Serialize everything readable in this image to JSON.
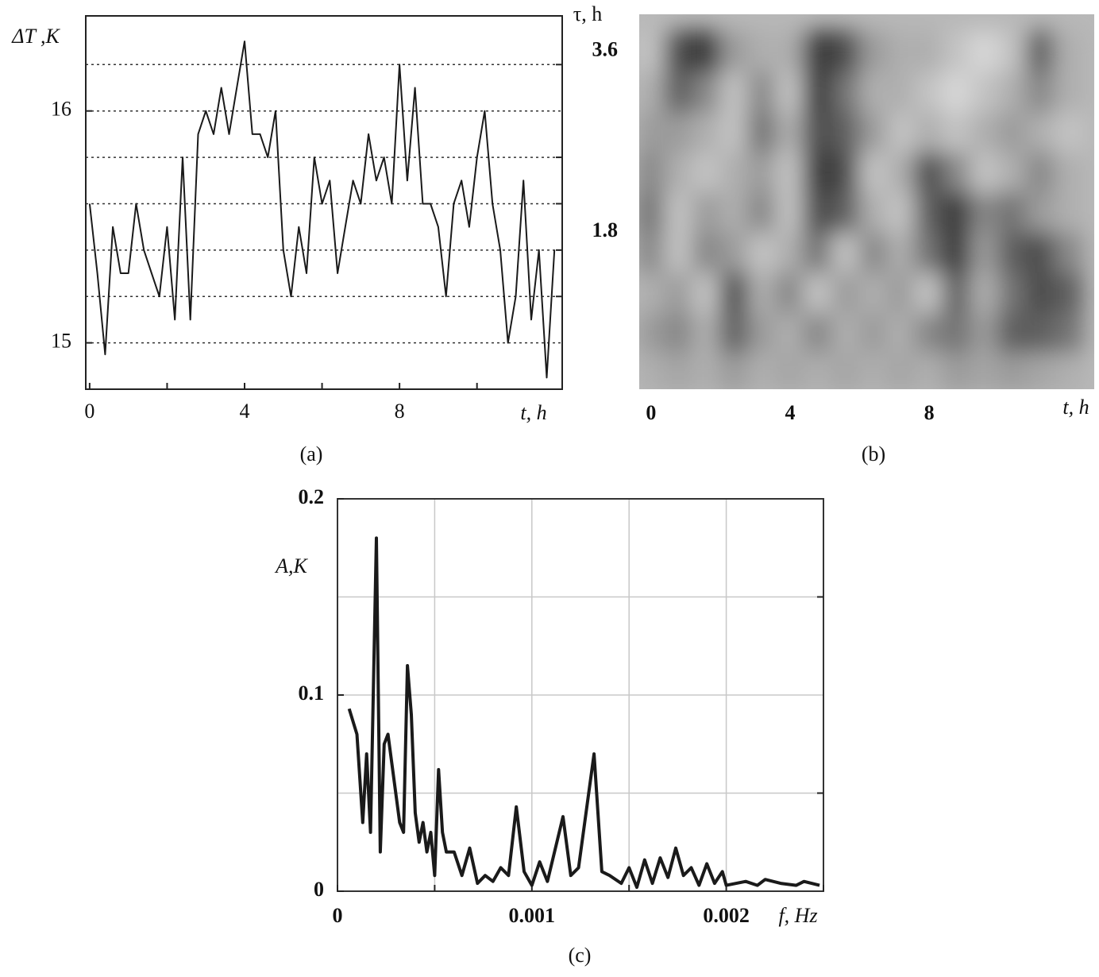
{
  "chart_data": [
    {
      "type": "line",
      "caption": "(a)",
      "x_label": "t, h",
      "y_label": "ΔT ,K",
      "x": [
        0,
        0.2,
        0.4,
        0.6,
        0.8,
        1.0,
        1.2,
        1.4,
        1.6,
        1.8,
        2.0,
        2.2,
        2.4,
        2.6,
        2.8,
        3.0,
        3.2,
        3.4,
        3.6,
        3.8,
        4.0,
        4.2,
        4.4,
        4.6,
        4.8,
        5.0,
        5.2,
        5.4,
        5.6,
        5.8,
        6.0,
        6.2,
        6.4,
        6.6,
        6.8,
        7.0,
        7.2,
        7.4,
        7.6,
        7.8,
        8.0,
        8.2,
        8.4,
        8.6,
        8.8,
        9.0,
        9.2,
        9.4,
        9.6,
        9.8,
        10.0,
        10.2,
        10.4,
        10.6,
        10.8,
        11.0,
        11.2,
        11.4,
        11.6,
        11.8,
        12.0
      ],
      "values": [
        15.6,
        15.3,
        14.95,
        15.5,
        15.3,
        15.3,
        15.6,
        15.4,
        15.3,
        15.2,
        15.5,
        15.1,
        15.8,
        15.1,
        15.9,
        16.0,
        15.9,
        16.1,
        15.9,
        16.1,
        16.3,
        15.9,
        15.9,
        15.8,
        16.0,
        15.4,
        15.2,
        15.5,
        15.3,
        15.8,
        15.6,
        15.7,
        15.3,
        15.5,
        15.7,
        15.6,
        15.9,
        15.7,
        15.8,
        15.6,
        16.2,
        15.7,
        16.1,
        15.6,
        15.6,
        15.5,
        15.2,
        15.6,
        15.7,
        15.5,
        15.8,
        16.0,
        15.6,
        15.4,
        15.0,
        15.2,
        15.7,
        15.1,
        15.4,
        14.85,
        15.4
      ],
      "color": "#1a1a1a",
      "xlim": [
        -0.1,
        12.2
      ],
      "ylim": [
        14.8,
        16.41
      ],
      "xticks": [
        0,
        4,
        8
      ],
      "minor_xticks": [
        2,
        6,
        10
      ],
      "yticks": [
        15,
        16
      ],
      "minor_yticks": [
        15.2,
        15.4,
        15.6,
        15.8,
        16.2
      ],
      "grid": "y"
    },
    {
      "type": "heatmap",
      "caption": "(b)",
      "x_label": "t, h",
      "y_label": "τ, h",
      "x": [
        0,
        0.8,
        1.6,
        2.4,
        3.2,
        4.0,
        4.8,
        5.6,
        6.4,
        7.2,
        8.0,
        8.8,
        9.6,
        10.4,
        11.2,
        12.0
      ],
      "y": [
        0.4,
        0.8,
        1.2,
        1.6,
        2.0,
        2.4,
        2.8,
        3.2,
        3.6
      ],
      "z": [
        [
          0.3,
          0.35,
          0.3,
          0.4,
          0.3,
          0.35,
          0.3,
          0.35,
          0.3,
          0.35,
          0.3,
          0.4,
          0.35,
          0.4,
          0.35,
          0.3
        ],
        [
          0.4,
          0.5,
          0.3,
          0.7,
          0.4,
          0.3,
          0.5,
          0.3,
          0.4,
          0.3,
          0.5,
          0.6,
          0.4,
          0.7,
          0.7,
          0.6
        ],
        [
          0.3,
          0.4,
          0.2,
          0.8,
          0.3,
          0.5,
          0.2,
          0.4,
          0.3,
          0.4,
          0.2,
          0.7,
          0.3,
          0.6,
          0.8,
          0.7
        ],
        [
          0.5,
          0.2,
          0.5,
          0.4,
          0.2,
          0.3,
          0.6,
          0.2,
          0.5,
          0.3,
          0.6,
          0.9,
          0.4,
          0.7,
          0.8,
          0.5
        ],
        [
          0.6,
          0.2,
          0.4,
          0.3,
          0.5,
          0.2,
          0.8,
          0.7,
          0.3,
          0.2,
          0.7,
          0.9,
          0.5,
          0.6,
          0.4,
          0.3
        ],
        [
          0.5,
          0.3,
          0.2,
          0.3,
          0.4,
          0.2,
          0.9,
          0.8,
          0.2,
          0.3,
          0.8,
          0.5,
          0.2,
          0.3,
          0.5,
          0.3
        ],
        [
          0.4,
          0.4,
          0.3,
          0.2,
          0.6,
          0.3,
          0.8,
          0.7,
          0.4,
          0.2,
          0.3,
          0.2,
          0.3,
          0.4,
          0.3,
          0.2
        ],
        [
          0.3,
          0.7,
          0.5,
          0.2,
          0.5,
          0.2,
          0.9,
          0.6,
          0.3,
          0.3,
          0.2,
          0.1,
          0.2,
          0.3,
          0.5,
          0.3
        ],
        [
          0.2,
          0.8,
          0.9,
          0.4,
          0.3,
          0.3,
          0.9,
          0.8,
          0.4,
          0.3,
          0.3,
          0.2,
          0.1,
          0.2,
          0.7,
          0.3
        ]
      ],
      "xlim": [
        -0.34,
        12.75
      ],
      "ylim": [
        0.23,
        3.97
      ],
      "xticks": [
        0,
        4,
        8
      ],
      "yticks": [
        1.8,
        3.6
      ]
    },
    {
      "type": "line",
      "caption": "(c)",
      "x_label": "f, Hz",
      "y_label": "A,K",
      "x": [
        6e-05,
        0.0001,
        0.00013,
        0.00015,
        0.00017,
        0.0002,
        0.00022,
        0.00024,
        0.00026,
        0.00028,
        0.0003,
        0.00032,
        0.00034,
        0.00036,
        0.00038,
        0.0004,
        0.00042,
        0.00044,
        0.00046,
        0.00048,
        0.0005,
        0.00052,
        0.00054,
        0.00056,
        0.0006,
        0.00064,
        0.00068,
        0.00072,
        0.00076,
        0.0008,
        0.00084,
        0.00088,
        0.00092,
        0.00096,
        0.001,
        0.00104,
        0.00108,
        0.00116,
        0.0012,
        0.00124,
        0.00132,
        0.00136,
        0.0014,
        0.00146,
        0.0015,
        0.00154,
        0.00158,
        0.00162,
        0.00166,
        0.0017,
        0.00174,
        0.00178,
        0.00182,
        0.00186,
        0.0019,
        0.00194,
        0.00198,
        0.002,
        0.0021,
        0.00216,
        0.0022,
        0.00228,
        0.00236,
        0.0024,
        0.00248
      ],
      "values": [
        0.093,
        0.08,
        0.035,
        0.07,
        0.03,
        0.18,
        0.02,
        0.075,
        0.08,
        0.065,
        0.05,
        0.035,
        0.03,
        0.115,
        0.09,
        0.04,
        0.025,
        0.035,
        0.02,
        0.03,
        0.008,
        0.062,
        0.03,
        0.02,
        0.02,
        0.008,
        0.022,
        0.004,
        0.008,
        0.005,
        0.012,
        0.008,
        0.043,
        0.01,
        0.003,
        0.015,
        0.005,
        0.038,
        0.008,
        0.012,
        0.07,
        0.01,
        0.008,
        0.004,
        0.012,
        0.002,
        0.016,
        0.004,
        0.017,
        0.007,
        0.022,
        0.008,
        0.012,
        0.003,
        0.014,
        0.004,
        0.01,
        0.003,
        0.005,
        0.003,
        0.006,
        0.004,
        0.003,
        0.005,
        0.003
      ],
      "color": "#1a1a1a",
      "xlim": [
        0,
        0.0025
      ],
      "ylim": [
        0,
        0.2
      ],
      "xticks": [
        0,
        0.001,
        0.002
      ],
      "minor_xticks": [
        0.0005,
        0.0015,
        0.0025
      ],
      "yticks": [
        0,
        0.1,
        0.2
      ],
      "minor_yticks": [
        0.05,
        0.15
      ],
      "grid": "both"
    }
  ]
}
